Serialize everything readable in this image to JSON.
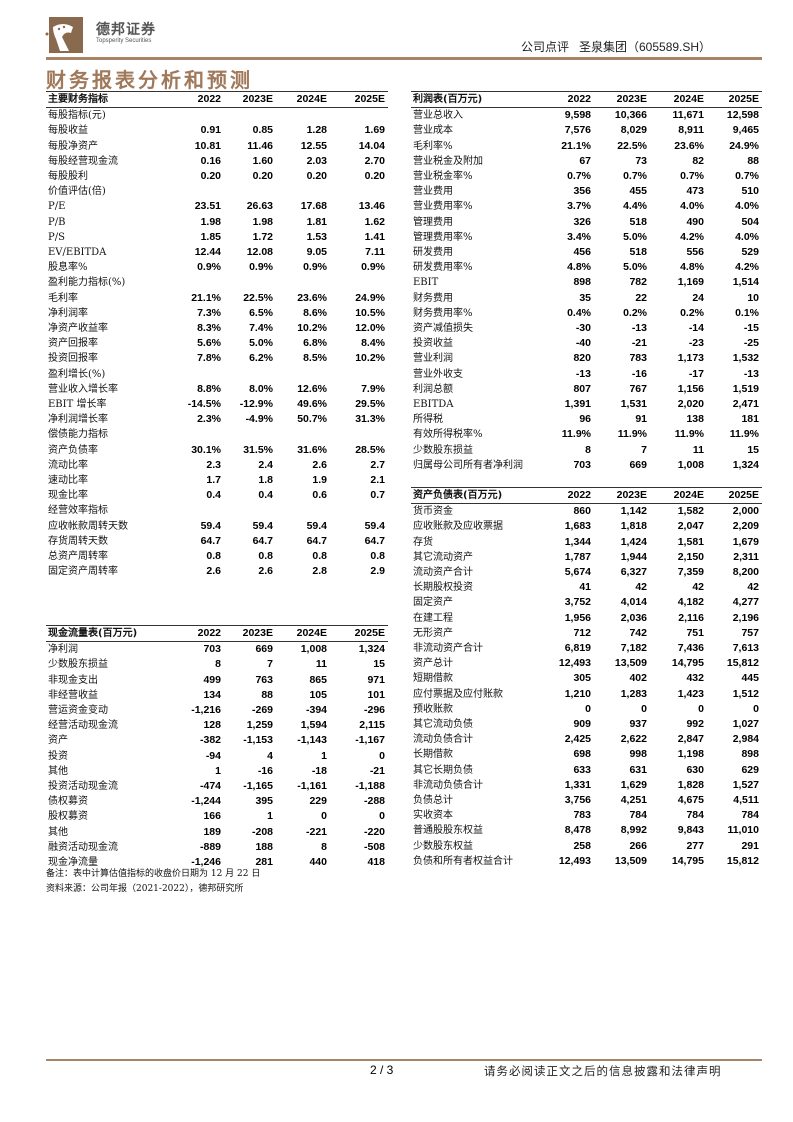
{
  "header": {
    "brand_cn": "德邦证券",
    "brand_en": "Topsperity Securities",
    "doc_type": "公司点评   圣泉集团（605589.SH）",
    "brand_color": "#a88466"
  },
  "section_title": "财务报表分析和预测",
  "key_indicators": {
    "columns": [
      "主要财务指标",
      "2022",
      "2023E",
      "2024E",
      "2025E"
    ],
    "rows": [
      [
        "每股指标(元)",
        "",
        "",
        "",
        ""
      ],
      [
        "每股收益",
        "0.91",
        "0.85",
        "1.28",
        "1.69"
      ],
      [
        "每股净资产",
        "10.81",
        "11.46",
        "12.55",
        "14.04"
      ],
      [
        "每股经营现金流",
        "0.16",
        "1.60",
        "2.03",
        "2.70"
      ],
      [
        "每股股利",
        "0.20",
        "0.20",
        "0.20",
        "0.20"
      ],
      [
        "价值评估(倍)",
        "",
        "",
        "",
        ""
      ],
      [
        "P/E",
        "23.51",
        "26.63",
        "17.68",
        "13.46"
      ],
      [
        "P/B",
        "1.98",
        "1.98",
        "1.81",
        "1.62"
      ],
      [
        "P/S",
        "1.85",
        "1.72",
        "1.53",
        "1.41"
      ],
      [
        "EV/EBITDA",
        "12.44",
        "12.08",
        "9.05",
        "7.11"
      ],
      [
        "股息率%",
        "0.9%",
        "0.9%",
        "0.9%",
        "0.9%"
      ],
      [
        "盈利能力指标(%)",
        "",
        "",
        "",
        ""
      ],
      [
        "毛利率",
        "21.1%",
        "22.5%",
        "23.6%",
        "24.9%"
      ],
      [
        "净利润率",
        "7.3%",
        "6.5%",
        "8.6%",
        "10.5%"
      ],
      [
        "净资产收益率",
        "8.3%",
        "7.4%",
        "10.2%",
        "12.0%"
      ],
      [
        "资产回报率",
        "5.6%",
        "5.0%",
        "6.8%",
        "8.4%"
      ],
      [
        "投资回报率",
        "7.8%",
        "6.2%",
        "8.5%",
        "10.2%"
      ],
      [
        "盈利增长(%)",
        "",
        "",
        "",
        ""
      ],
      [
        "营业收入增长率",
        "8.8%",
        "8.0%",
        "12.6%",
        "7.9%"
      ],
      [
        "EBIT 增长率",
        "-14.5%",
        "-12.9%",
        "49.6%",
        "29.5%"
      ],
      [
        "净利润增长率",
        "2.3%",
        "-4.9%",
        "50.7%",
        "31.3%"
      ],
      [
        "偿债能力指标",
        "",
        "",
        "",
        ""
      ],
      [
        "资产负债率",
        "30.1%",
        "31.5%",
        "31.6%",
        "28.5%"
      ],
      [
        "流动比率",
        "2.3",
        "2.4",
        "2.6",
        "2.7"
      ],
      [
        "速动比率",
        "1.7",
        "1.8",
        "1.9",
        "2.1"
      ],
      [
        "现金比率",
        "0.4",
        "0.4",
        "0.6",
        "0.7"
      ],
      [
        "经营效率指标",
        "",
        "",
        "",
        ""
      ],
      [
        "应收帐款周转天数",
        "59.4",
        "59.4",
        "59.4",
        "59.4"
      ],
      [
        "存货周转天数",
        "64.7",
        "64.7",
        "64.7",
        "64.7"
      ],
      [
        "总资产周转率",
        "0.8",
        "0.8",
        "0.8",
        "0.8"
      ],
      [
        "固定资产周转率",
        "2.6",
        "2.6",
        "2.8",
        "2.9"
      ]
    ]
  },
  "cash_flow": {
    "columns": [
      "现金流量表(百万元)",
      "2022",
      "2023E",
      "2024E",
      "2025E"
    ],
    "rows": [
      [
        "净利润",
        "703",
        "669",
        "1,008",
        "1,324"
      ],
      [
        "少数股东损益",
        "8",
        "7",
        "11",
        "15"
      ],
      [
        "非现金支出",
        "499",
        "763",
        "865",
        "971"
      ],
      [
        "非经营收益",
        "134",
        "88",
        "105",
        "101"
      ],
      [
        "营运资金变动",
        "-1,216",
        "-269",
        "-394",
        "-296"
      ],
      [
        "经营活动现金流",
        "128",
        "1,259",
        "1,594",
        "2,115"
      ],
      [
        "资产",
        "-382",
        "-1,153",
        "-1,143",
        "-1,167"
      ],
      [
        "投资",
        "-94",
        "4",
        "1",
        "0"
      ],
      [
        "其他",
        "1",
        "-16",
        "-18",
        "-21"
      ],
      [
        "投资活动现金流",
        "-474",
        "-1,165",
        "-1,161",
        "-1,188"
      ],
      [
        "债权募资",
        "-1,244",
        "395",
        "229",
        "-288"
      ],
      [
        "股权募资",
        "166",
        "1",
        "0",
        "0"
      ],
      [
        "其他",
        "189",
        "-208",
        "-221",
        "-220"
      ],
      [
        "融资活动现金流",
        "-889",
        "188",
        "8",
        "-508"
      ],
      [
        "现金净流量",
        "-1,246",
        "281",
        "440",
        "418"
      ]
    ]
  },
  "income_statement": {
    "columns": [
      "利润表(百万元)",
      "2022",
      "2023E",
      "2024E",
      "2025E"
    ],
    "rows": [
      [
        "营业总收入",
        "9,598",
        "10,366",
        "11,671",
        "12,598"
      ],
      [
        "营业成本",
        "7,576",
        "8,029",
        "8,911",
        "9,465"
      ],
      [
        "毛利率%",
        "21.1%",
        "22.5%",
        "23.6%",
        "24.9%"
      ],
      [
        "营业税金及附加",
        "67",
        "73",
        "82",
        "88"
      ],
      [
        "营业税金率%",
        "0.7%",
        "0.7%",
        "0.7%",
        "0.7%"
      ],
      [
        "营业费用",
        "356",
        "455",
        "473",
        "510"
      ],
      [
        "营业费用率%",
        "3.7%",
        "4.4%",
        "4.0%",
        "4.0%"
      ],
      [
        "管理费用",
        "326",
        "518",
        "490",
        "504"
      ],
      [
        "管理费用率%",
        "3.4%",
        "5.0%",
        "4.2%",
        "4.0%"
      ],
      [
        "研发费用",
        "456",
        "518",
        "556",
        "529"
      ],
      [
        "研发费用率%",
        "4.8%",
        "5.0%",
        "4.8%",
        "4.2%"
      ],
      [
        "EBIT",
        "898",
        "782",
        "1,169",
        "1,514"
      ],
      [
        "财务费用",
        "35",
        "22",
        "24",
        "10"
      ],
      [
        "财务费用率%",
        "0.4%",
        "0.2%",
        "0.2%",
        "0.1%"
      ],
      [
        "资产减值损失",
        "-30",
        "-13",
        "-14",
        "-15"
      ],
      [
        "投资收益",
        "-40",
        "-21",
        "-23",
        "-25"
      ],
      [
        "营业利润",
        "820",
        "783",
        "1,173",
        "1,532"
      ],
      [
        "营业外收支",
        "-13",
        "-16",
        "-17",
        "-13"
      ],
      [
        "利润总额",
        "807",
        "767",
        "1,156",
        "1,519"
      ],
      [
        "EBITDA",
        "1,391",
        "1,531",
        "2,020",
        "2,471"
      ],
      [
        "所得税",
        "96",
        "91",
        "138",
        "181"
      ],
      [
        "有效所得税率%",
        "11.9%",
        "11.9%",
        "11.9%",
        "11.9%"
      ],
      [
        "少数股东损益",
        "8",
        "7",
        "11",
        "15"
      ],
      [
        "归属母公司所有者净利润",
        "703",
        "669",
        "1,008",
        "1,324"
      ]
    ]
  },
  "balance_sheet": {
    "columns": [
      "资产负债表(百万元)",
      "2022",
      "2023E",
      "2024E",
      "2025E"
    ],
    "rows": [
      [
        "货币资金",
        "860",
        "1,142",
        "1,582",
        "2,000"
      ],
      [
        "应收账款及应收票据",
        "1,683",
        "1,818",
        "2,047",
        "2,209"
      ],
      [
        "存货",
        "1,344",
        "1,424",
        "1,581",
        "1,679"
      ],
      [
        "其它流动资产",
        "1,787",
        "1,944",
        "2,150",
        "2,311"
      ],
      [
        "流动资产合计",
        "5,674",
        "6,327",
        "7,359",
        "8,200"
      ],
      [
        "长期股权投资",
        "41",
        "42",
        "42",
        "42"
      ],
      [
        "固定资产",
        "3,752",
        "4,014",
        "4,182",
        "4,277"
      ],
      [
        "在建工程",
        "1,956",
        "2,036",
        "2,116",
        "2,196"
      ],
      [
        "无形资产",
        "712",
        "742",
        "751",
        "757"
      ],
      [
        "非流动资产合计",
        "6,819",
        "7,182",
        "7,436",
        "7,613"
      ],
      [
        "资产总计",
        "12,493",
        "13,509",
        "14,795",
        "15,812"
      ],
      [
        "短期借款",
        "305",
        "402",
        "432",
        "445"
      ],
      [
        "应付票据及应付账款",
        "1,210",
        "1,283",
        "1,423",
        "1,512"
      ],
      [
        "预收账款",
        "0",
        "0",
        "0",
        "0"
      ],
      [
        "其它流动负债",
        "909",
        "937",
        "992",
        "1,027"
      ],
      [
        "流动负债合计",
        "2,425",
        "2,622",
        "2,847",
        "2,984"
      ],
      [
        "长期借款",
        "698",
        "998",
        "1,198",
        "898"
      ],
      [
        "其它长期负债",
        "633",
        "631",
        "630",
        "629"
      ],
      [
        "非流动负债合计",
        "1,331",
        "1,629",
        "1,828",
        "1,527"
      ],
      [
        "负债总计",
        "3,756",
        "4,251",
        "4,675",
        "4,511"
      ],
      [
        "实收资本",
        "783",
        "784",
        "784",
        "784"
      ],
      [
        "普通股股东权益",
        "8,478",
        "8,992",
        "9,843",
        "11,010"
      ],
      [
        "少数股东权益",
        "258",
        "266",
        "277",
        "291"
      ],
      [
        "负债和所有者权益合计",
        "12,493",
        "13,509",
        "14,795",
        "15,812"
      ]
    ]
  },
  "notes": {
    "remark": "备注：表中计算估值指标的收盘价日期为 12 月 22 日",
    "source": "资料来源：公司年报（2021-2022），德邦研究所"
  },
  "footer": {
    "page": "2 / 3",
    "disclaimer": "请务必阅读正文之后的信息披露和法律声明"
  }
}
